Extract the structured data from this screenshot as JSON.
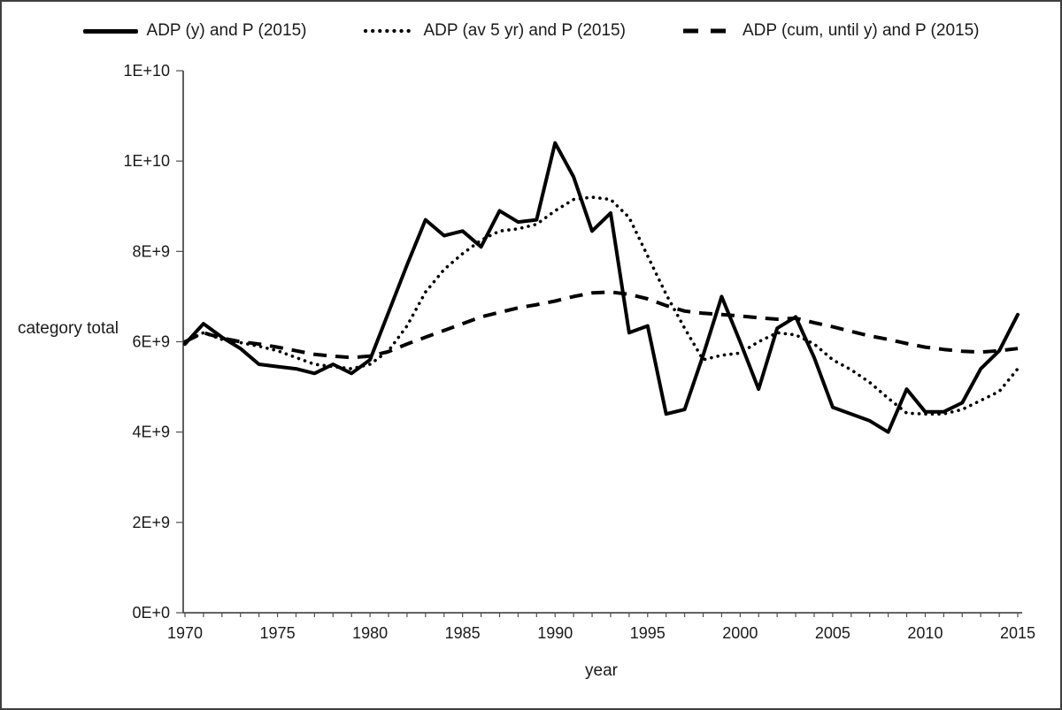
{
  "figure": {
    "background": "#ffffff",
    "border_color": "#3f3f3f",
    "line_color": "#000000"
  },
  "legend": {
    "items": [
      {
        "label": "ADP (y) and P (2015)",
        "style": "solid"
      },
      {
        "label": "ADP (av 5 yr) and P (2015)",
        "style": "dotted"
      },
      {
        "label": "ADP (cum, until y) and P (2015)",
        "style": "dashed"
      }
    ]
  },
  "chart_data": {
    "type": "line",
    "title": "",
    "xlabel": "year",
    "ylabel": "category total",
    "grid": false,
    "legend_position": "top",
    "xlim": [
      1970,
      2015
    ],
    "ylim": [
      0,
      12000000000.0
    ],
    "x": [
      1970,
      1971,
      1972,
      1973,
      1974,
      1975,
      1976,
      1977,
      1978,
      1979,
      1980,
      1981,
      1982,
      1983,
      1984,
      1985,
      1986,
      1987,
      1988,
      1989,
      1990,
      1991,
      1992,
      1993,
      1994,
      1995,
      1996,
      1997,
      1998,
      1999,
      2000,
      2001,
      2002,
      2003,
      2004,
      2005,
      2006,
      2007,
      2008,
      2009,
      2010,
      2011,
      2012,
      2013,
      2014,
      2015
    ],
    "x_tick_labels": [
      "1970",
      "1975",
      "1980",
      "1985",
      "1990",
      "1995",
      "2000",
      "2005",
      "2010",
      "2015"
    ],
    "y_tick_values": [
      0,
      2000000000.0,
      4000000000.0,
      6000000000.0,
      8000000000.0,
      10000000000.0,
      12000000000.0
    ],
    "y_tick_labels": [
      "0E+0",
      "2E+9",
      "4E+9",
      "6E+9",
      "8E+9",
      "1E+10",
      "1E+10"
    ],
    "series": [
      {
        "name": "ADP (y) and P (2015)",
        "style": "solid",
        "values": [
          5950000000.0,
          6400000000.0,
          6100000000.0,
          5850000000.0,
          5500000000.0,
          5450000000.0,
          5400000000.0,
          5300000000.0,
          5500000000.0,
          5300000000.0,
          5600000000.0,
          6650000000.0,
          7700000000.0,
          8700000000.0,
          8350000000.0,
          8450000000.0,
          8100000000.0,
          8900000000.0,
          8650000000.0,
          8700000000.0,
          10400000000.0,
          9650000000.0,
          8450000000.0,
          8850000000.0,
          6200000000.0,
          6350000000.0,
          4400000000.0,
          4500000000.0,
          5700000000.0,
          7000000000.0,
          6000000000.0,
          4950000000.0,
          6300000000.0,
          6550000000.0,
          5650000000.0,
          4550000000.0,
          4400000000.0,
          4250000000.0,
          4000000000.0,
          4950000000.0,
          4450000000.0,
          4450000000.0,
          4650000000.0,
          5400000000.0,
          5800000000.0,
          6600000000.0
        ]
      },
      {
        "name": "ADP (av 5 yr) and P (2015)",
        "style": "dotted",
        "values": [
          6000000000.0,
          6200000000.0,
          6050000000.0,
          5980000000.0,
          5900000000.0,
          5800000000.0,
          5650000000.0,
          5500000000.0,
          5450000000.0,
          5400000000.0,
          5500000000.0,
          5800000000.0,
          6350000000.0,
          7100000000.0,
          7600000000.0,
          7950000000.0,
          8250000000.0,
          8450000000.0,
          8500000000.0,
          8600000000.0,
          8900000000.0,
          9150000000.0,
          9200000000.0,
          9150000000.0,
          8750000000.0,
          7900000000.0,
          7050000000.0,
          6300000000.0,
          5600000000.0,
          5700000000.0,
          5750000000.0,
          6000000000.0,
          6200000000.0,
          6150000000.0,
          5950000000.0,
          5600000000.0,
          5380000000.0,
          5100000000.0,
          4750000000.0,
          4420000000.0,
          4400000000.0,
          4400000000.0,
          4500000000.0,
          4700000000.0,
          4900000000.0,
          5400000000.0
        ]
      },
      {
        "name": "ADP (cum, until y) and P (2015)",
        "style": "dashed",
        "values": [
          6000000000.0,
          6200000000.0,
          6080000000.0,
          6000000000.0,
          5950000000.0,
          5880000000.0,
          5800000000.0,
          5720000000.0,
          5680000000.0,
          5650000000.0,
          5680000000.0,
          5780000000.0,
          5950000000.0,
          6100000000.0,
          6250000000.0,
          6400000000.0,
          6550000000.0,
          6650000000.0,
          6750000000.0,
          6820000000.0,
          6900000000.0,
          7000000000.0,
          7080000000.0,
          7100000000.0,
          7050000000.0,
          6950000000.0,
          6800000000.0,
          6680000000.0,
          6630000000.0,
          6600000000.0,
          6570000000.0,
          6530000000.0,
          6500000000.0,
          6520000000.0,
          6420000000.0,
          6330000000.0,
          6230000000.0,
          6130000000.0,
          6050000000.0,
          5960000000.0,
          5880000000.0,
          5830000000.0,
          5790000000.0,
          5770000000.0,
          5800000000.0,
          5850000000.0
        ]
      }
    ]
  }
}
